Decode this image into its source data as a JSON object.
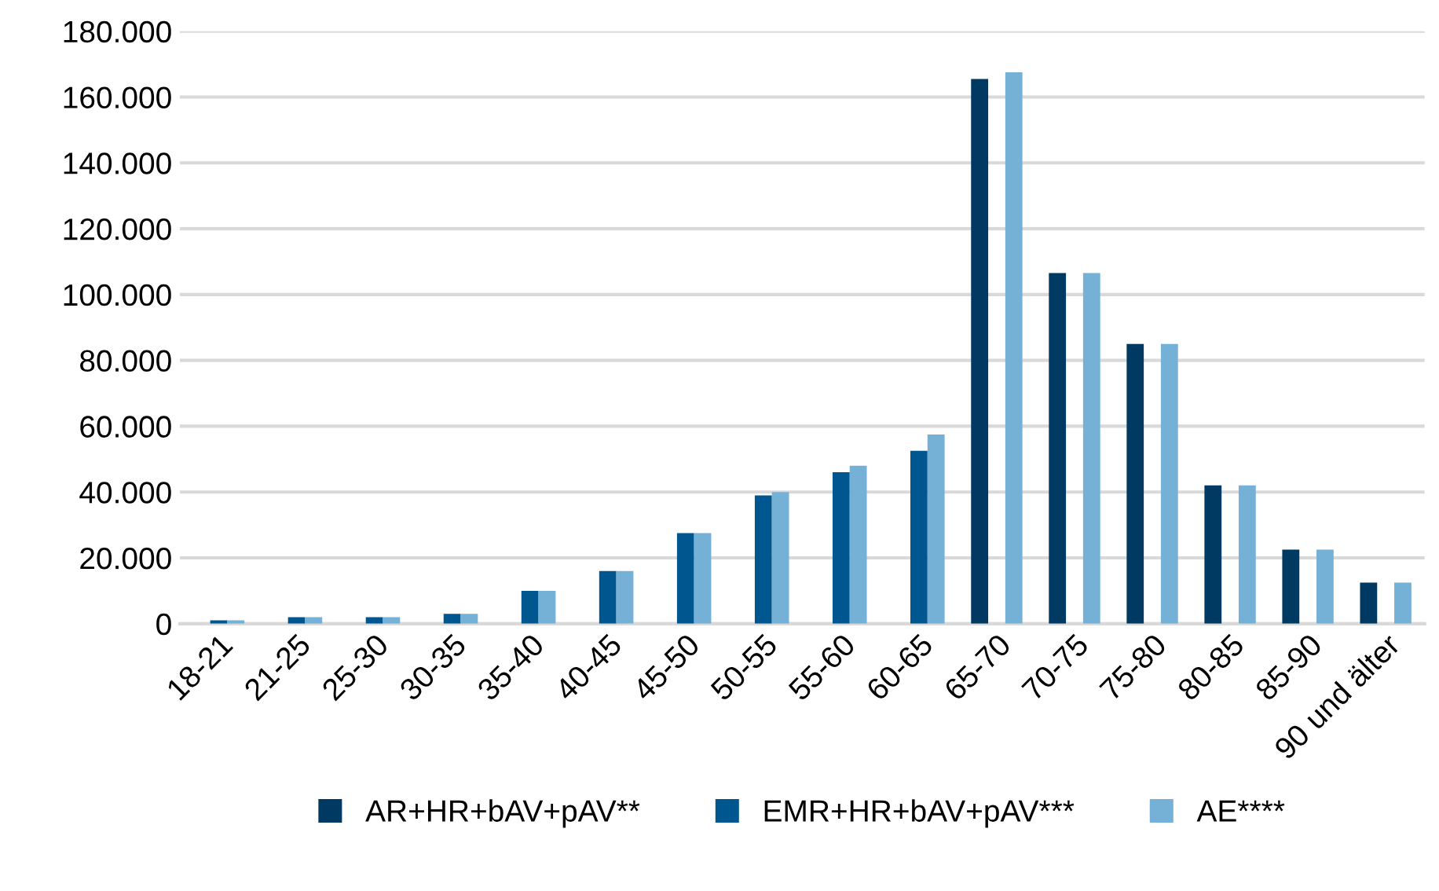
{
  "chart_data": {
    "type": "bar",
    "categories": [
      "18-21",
      "21-25",
      "25-30",
      "30-35",
      "35-40",
      "40-45",
      "45-50",
      "50-55",
      "55-60",
      "60-65",
      "65-70",
      "70-75",
      "75-80",
      "80-85",
      "85-90",
      "90 und älter"
    ],
    "series": [
      {
        "name": "AR+HR+bAV+pAV**",
        "color": "#003a63",
        "values": [
          null,
          null,
          null,
          null,
          null,
          null,
          null,
          null,
          null,
          null,
          165500,
          106500,
          85000,
          42000,
          22500,
          12500
        ]
      },
      {
        "name": "EMR+HR+bAV+pAV***",
        "color": "#00578f",
        "values": [
          1000,
          2000,
          2000,
          3000,
          10000,
          16000,
          27500,
          39000,
          46000,
          52500,
          null,
          null,
          null,
          null,
          null,
          null
        ]
      },
      {
        "name": "AE****",
        "color": "#75b0d7",
        "values": [
          1000,
          2000,
          2000,
          3000,
          10000,
          16000,
          27500,
          40000,
          48000,
          57500,
          167500,
          106500,
          85000,
          42000,
          22500,
          12500
        ]
      }
    ],
    "ylim": [
      0,
      180000
    ],
    "yticks": [
      {
        "value": 0,
        "label": "0"
      },
      {
        "value": 20000,
        "label": "20.000"
      },
      {
        "value": 40000,
        "label": "40.000"
      },
      {
        "value": 60000,
        "label": "60.000"
      },
      {
        "value": 80000,
        "label": "80.000"
      },
      {
        "value": 100000,
        "label": "100.000"
      },
      {
        "value": 120000,
        "label": "120.000"
      },
      {
        "value": 140000,
        "label": "140.000"
      },
      {
        "value": 160000,
        "label": "160.000"
      },
      {
        "value": 180000,
        "label": "180.000"
      }
    ],
    "grid": "y",
    "legend": "bottom"
  }
}
